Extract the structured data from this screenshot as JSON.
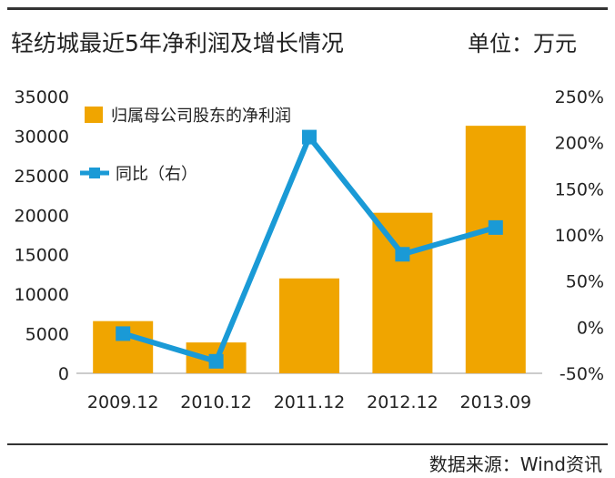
{
  "header": {
    "title": "轻纺城最近5年净利润及增长情况",
    "unit": "单位：万元"
  },
  "footer": {
    "source": "数据来源：Wind资讯"
  },
  "chart_data": {
    "type": "bar",
    "categories": [
      "2009.12",
      "2010.12",
      "2011.12",
      "2012.12",
      "2013.09"
    ],
    "series": [
      {
        "name": "归属母公司股东的净利润",
        "type": "bar",
        "axis": "left",
        "color": "#f0a500",
        "values": [
          6600,
          3900,
          12000,
          20300,
          31300
        ]
      },
      {
        "name": "同比（右）",
        "type": "line",
        "axis": "right",
        "color": "#1a9ad6",
        "values": [
          -7,
          -37,
          206,
          79,
          108
        ]
      }
    ],
    "y_left": {
      "ylim": [
        0,
        35000
      ],
      "ticks": [
        "0",
        "5000",
        "10000",
        "15000",
        "20000",
        "25000",
        "30000",
        "35000"
      ]
    },
    "y_right": {
      "ylim": [
        -50,
        250
      ],
      "ticks": [
        "-50%",
        "0%",
        "50%",
        "100%",
        "150%",
        "200%",
        "250%"
      ]
    },
    "grid": false,
    "legend_position": "top-left"
  }
}
